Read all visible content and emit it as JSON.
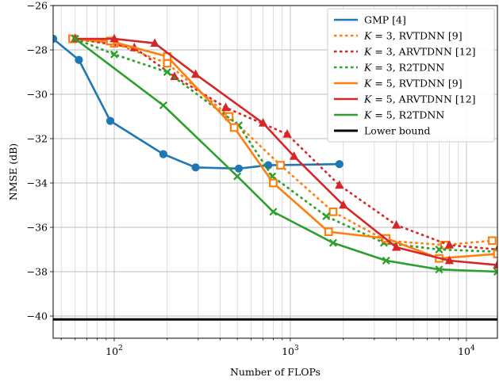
{
  "chart_data": {
    "type": "line",
    "xlabel": "Number of FLOPs",
    "ylabel": "NMSE (dB)",
    "x_scale": "log",
    "xlim": [
      45,
      15000
    ],
    "ylim": [
      -41,
      -26
    ],
    "grid": true,
    "legend_position": "top-right",
    "x_ticks": [
      {
        "value": 100,
        "base": "10",
        "exp": "2"
      },
      {
        "value": 1000,
        "base": "10",
        "exp": "3"
      },
      {
        "value": 10000,
        "base": "10",
        "exp": "4"
      }
    ],
    "y_ticks": [
      {
        "value": -26,
        "label": "−26"
      },
      {
        "value": -28,
        "label": "−28"
      },
      {
        "value": -30,
        "label": "−30"
      },
      {
        "value": -32,
        "label": "−32"
      },
      {
        "value": -34,
        "label": "−34"
      },
      {
        "value": -36,
        "label": "−36"
      },
      {
        "value": -38,
        "label": "−38"
      },
      {
        "value": -40,
        "label": "−40"
      }
    ],
    "series": [
      {
        "name": "GMP [4]",
        "legend_parts": [
          {
            "t": "GMP [4]"
          }
        ],
        "color": "#1f77b4",
        "dash": "solid",
        "marker": "circle",
        "points": [
          [
            45,
            -27.5
          ],
          [
            63,
            -28.45
          ],
          [
            95,
            -31.2
          ],
          [
            190,
            -32.7
          ],
          [
            290,
            -33.3
          ],
          [
            510,
            -33.35
          ],
          [
            750,
            -33.2
          ],
          [
            1900,
            -33.15
          ]
        ]
      },
      {
        "name": "K = 3, RVTDNN [9]",
        "legend_parts": [
          {
            "t": "K",
            "i": true
          },
          {
            "t": " = 3, RVTDNN [9]"
          }
        ],
        "color": "#ff7f0e",
        "dash": "dotted",
        "marker": "square",
        "points": [
          [
            58,
            -27.5
          ],
          [
            100,
            -27.7
          ],
          [
            200,
            -28.6
          ],
          [
            450,
            -31.0
          ],
          [
            880,
            -33.2
          ],
          [
            1750,
            -35.3
          ],
          [
            3500,
            -36.6
          ],
          [
            7500,
            -36.8
          ],
          [
            14000,
            -36.6
          ]
        ]
      },
      {
        "name": "K = 3, ARVTDNN [12]",
        "legend_parts": [
          {
            "t": "K",
            "i": true
          },
          {
            "t": " = 3, ARVTDNN [12]"
          }
        ],
        "color": "#d62728",
        "dash": "dotted",
        "marker": "triangle",
        "points": [
          [
            60,
            -27.5
          ],
          [
            130,
            -27.9
          ],
          [
            220,
            -29.2
          ],
          [
            430,
            -30.6
          ],
          [
            960,
            -31.8
          ],
          [
            1900,
            -34.1
          ],
          [
            4000,
            -35.9
          ],
          [
            8000,
            -36.8
          ],
          [
            15000,
            -37.0
          ]
        ]
      },
      {
        "name": "K = 3, R2TDNN",
        "legend_parts": [
          {
            "t": "K",
            "i": true
          },
          {
            "t": " = 3, R2TDNN"
          }
        ],
        "color": "#2ca02c",
        "dash": "dotted",
        "marker": "x",
        "points": [
          [
            60,
            -27.5
          ],
          [
            100,
            -28.2
          ],
          [
            200,
            -29.0
          ],
          [
            510,
            -31.4
          ],
          [
            790,
            -33.7
          ],
          [
            1600,
            -35.5
          ],
          [
            3400,
            -36.7
          ],
          [
            7000,
            -37.0
          ],
          [
            15000,
            -37.1
          ]
        ]
      },
      {
        "name": "K = 5, RVTDNN [9]",
        "legend_parts": [
          {
            "t": "K",
            "i": true
          },
          {
            "t": " = 5, RVTDNN [9]"
          }
        ],
        "color": "#ff7f0e",
        "dash": "solid",
        "marker": "square",
        "points": [
          [
            58,
            -27.5
          ],
          [
            95,
            -27.6
          ],
          [
            200,
            -28.3
          ],
          [
            480,
            -31.5
          ],
          [
            800,
            -34.0
          ],
          [
            1650,
            -36.2
          ],
          [
            3500,
            -36.5
          ],
          [
            7000,
            -37.4
          ],
          [
            15000,
            -37.2
          ]
        ]
      },
      {
        "name": "K = 5, ARVTDNN [12]",
        "legend_parts": [
          {
            "t": "K",
            "i": true
          },
          {
            "t": " = 5, ARVTDNN [12]"
          }
        ],
        "color": "#d62728",
        "dash": "solid",
        "marker": "triangle",
        "points": [
          [
            60,
            -27.5
          ],
          [
            100,
            -27.5
          ],
          [
            170,
            -27.7
          ],
          [
            290,
            -29.1
          ],
          [
            700,
            -31.3
          ],
          [
            1050,
            -32.8
          ],
          [
            2000,
            -35.0
          ],
          [
            4000,
            -36.9
          ],
          [
            8000,
            -37.5
          ],
          [
            15000,
            -37.7
          ]
        ]
      },
      {
        "name": "K = 5, R2TDNN",
        "legend_parts": [
          {
            "t": "K",
            "i": true
          },
          {
            "t": " = 5, R2TDNN"
          }
        ],
        "color": "#2ca02c",
        "dash": "solid",
        "marker": "x",
        "points": [
          [
            60,
            -27.5
          ],
          [
            190,
            -30.5
          ],
          [
            500,
            -33.7
          ],
          [
            800,
            -35.3
          ],
          [
            1750,
            -36.7
          ],
          [
            3500,
            -37.5
          ],
          [
            7000,
            -37.9
          ],
          [
            15000,
            -38.0
          ]
        ]
      },
      {
        "name": "Lower bound",
        "legend_parts": [
          {
            "t": "Lower bound"
          }
        ],
        "color": "#000000",
        "dash": "solid",
        "marker": "none",
        "points": [
          [
            45,
            -40.15
          ],
          [
            15000,
            -40.15
          ]
        ]
      }
    ]
  }
}
